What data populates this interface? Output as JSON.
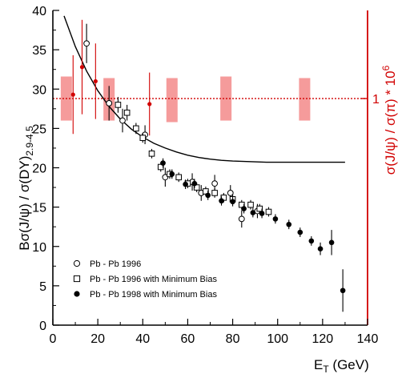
{
  "chart_data": {
    "type": "scatter",
    "x_axis": {
      "label_main": "E",
      "label_sub": "T",
      "label_unit": " (GeV)",
      "range": [
        0,
        140
      ],
      "ticks": [
        0,
        20,
        40,
        60,
        80,
        100,
        120,
        140
      ]
    },
    "y_axis_left": {
      "label": "Bσ(J/ψ) / σ(DY)",
      "label_sub": "2.9-4.5",
      "range": [
        0,
        40
      ],
      "ticks": [
        0,
        5,
        10,
        15,
        20,
        25,
        30,
        35,
        40
      ]
    },
    "y_axis_right": {
      "label": "σ(J/ψ) / σ(π) * 10",
      "label_sup": "6",
      "tick_label": "1",
      "tick_value_left_units": 28.8,
      "color": "#d10000"
    },
    "series": [
      {
        "name": "Pb - Pb 1996",
        "marker": "open-circle",
        "points": [
          {
            "x": 15,
            "y": 35.8,
            "err": 2.5
          },
          {
            "x": 25,
            "y": 28.2,
            "err": 2.2
          },
          {
            "x": 31,
            "y": 26.0,
            "err": 1.5
          },
          {
            "x": 41,
            "y": 24.2,
            "err": 1.2
          },
          {
            "x": 50,
            "y": 18.8,
            "err": 1.2
          },
          {
            "x": 62,
            "y": 18.2,
            "err": 1.1
          },
          {
            "x": 66,
            "y": 16.8,
            "err": 1.0
          },
          {
            "x": 72,
            "y": 18.0,
            "err": 1.1
          },
          {
            "x": 79,
            "y": 16.8,
            "err": 1.0
          },
          {
            "x": 84,
            "y": 13.5,
            "err": 1.1
          },
          {
            "x": 91,
            "y": 14.5,
            "err": 0.9
          }
        ]
      },
      {
        "name": "Pb - Pb 1996 with Minimum Bias",
        "marker": "open-square",
        "points": [
          {
            "x": 29,
            "y": 28.0,
            "err": 1.0
          },
          {
            "x": 33,
            "y": 27.0,
            "err": 1.0
          },
          {
            "x": 37,
            "y": 25.0,
            "err": 0.7
          },
          {
            "x": 40,
            "y": 23.8,
            "err": 0.6
          },
          {
            "x": 44,
            "y": 21.8,
            "err": 0.6
          },
          {
            "x": 48,
            "y": 20.1,
            "err": 0.6
          },
          {
            "x": 52,
            "y": 19.2,
            "err": 0.6
          },
          {
            "x": 56,
            "y": 18.8,
            "err": 0.6
          },
          {
            "x": 60,
            "y": 18.0,
            "err": 0.6
          },
          {
            "x": 64,
            "y": 17.5,
            "err": 0.6
          },
          {
            "x": 68,
            "y": 17.0,
            "err": 0.6
          },
          {
            "x": 72,
            "y": 16.8,
            "err": 0.6
          },
          {
            "x": 76,
            "y": 16.2,
            "err": 0.6
          },
          {
            "x": 80,
            "y": 16.0,
            "err": 0.6
          },
          {
            "x": 84,
            "y": 15.3,
            "err": 0.6
          },
          {
            "x": 88,
            "y": 15.3,
            "err": 0.6
          },
          {
            "x": 92,
            "y": 14.8,
            "err": 0.6
          },
          {
            "x": 96,
            "y": 14.4,
            "err": 0.6
          }
        ]
      },
      {
        "name": "Pb - Pb 1998 with Minimum Bias",
        "marker": "filled-circle",
        "points": [
          {
            "x": 49,
            "y": 20.6,
            "err": 0.6
          },
          {
            "x": 53,
            "y": 19.2,
            "err": 0.6
          },
          {
            "x": 59,
            "y": 17.9,
            "err": 0.6
          },
          {
            "x": 63,
            "y": 18.0,
            "err": 0.6
          },
          {
            "x": 69,
            "y": 16.5,
            "err": 0.6
          },
          {
            "x": 75,
            "y": 15.8,
            "err": 0.6
          },
          {
            "x": 80,
            "y": 15.7,
            "err": 0.6
          },
          {
            "x": 85,
            "y": 14.8,
            "err": 0.6
          },
          {
            "x": 89,
            "y": 14.3,
            "err": 0.6
          },
          {
            "x": 93,
            "y": 14.2,
            "err": 0.6
          },
          {
            "x": 99,
            "y": 13.5,
            "err": 0.6
          },
          {
            "x": 105,
            "y": 12.8,
            "err": 0.6
          },
          {
            "x": 110,
            "y": 11.8,
            "err": 0.6
          },
          {
            "x": 115,
            "y": 10.7,
            "err": 0.6
          },
          {
            "x": 119,
            "y": 9.7,
            "err": 0.8
          },
          {
            "x": 124,
            "y": 10.5,
            "err": 1.6
          },
          {
            "x": 129,
            "y": 4.4,
            "err": 2.7
          }
        ]
      },
      {
        "name": "",
        "marker": "red-dot",
        "color": "#d10000",
        "points": [
          {
            "x": 9,
            "y": 29.3,
            "err": 5.0
          },
          {
            "x": 13,
            "y": 32.8,
            "err": 6.0
          },
          {
            "x": 19,
            "y": 31.0,
            "err": 4.8
          },
          {
            "x": 43,
            "y": 28.1,
            "err": 4.0
          }
        ]
      }
    ],
    "systematic_bands": [
      {
        "x_center": 6,
        "y_low": 26.0,
        "y_high": 31.6
      },
      {
        "x_center": 25,
        "y_low": 26.0,
        "y_high": 31.4
      },
      {
        "x_center": 53,
        "y_low": 25.8,
        "y_high": 31.4
      },
      {
        "x_center": 77,
        "y_low": 26.0,
        "y_high": 31.6
      },
      {
        "x_center": 112,
        "y_low": 26.0,
        "y_high": 31.4
      }
    ],
    "reference_line": {
      "y": 28.8,
      "style": "dotted",
      "color": "#d10000"
    },
    "curve": {
      "x": [
        5,
        10,
        15,
        20,
        25,
        30,
        35,
        40,
        45,
        50,
        55,
        60,
        65,
        70,
        75,
        80,
        85,
        90,
        95,
        100,
        105,
        110,
        115,
        120,
        125,
        130
      ],
      "y": [
        39.3,
        35.4,
        32.3,
        29.8,
        27.8,
        26.2,
        24.9,
        23.9,
        23.1,
        22.5,
        22.0,
        21.6,
        21.3,
        21.1,
        20.95,
        20.85,
        20.8,
        20.75,
        20.7,
        20.7,
        20.7,
        20.7,
        20.7,
        20.7,
        20.7,
        20.7
      ]
    },
    "legend": {
      "placement": "bottom-left"
    }
  }
}
